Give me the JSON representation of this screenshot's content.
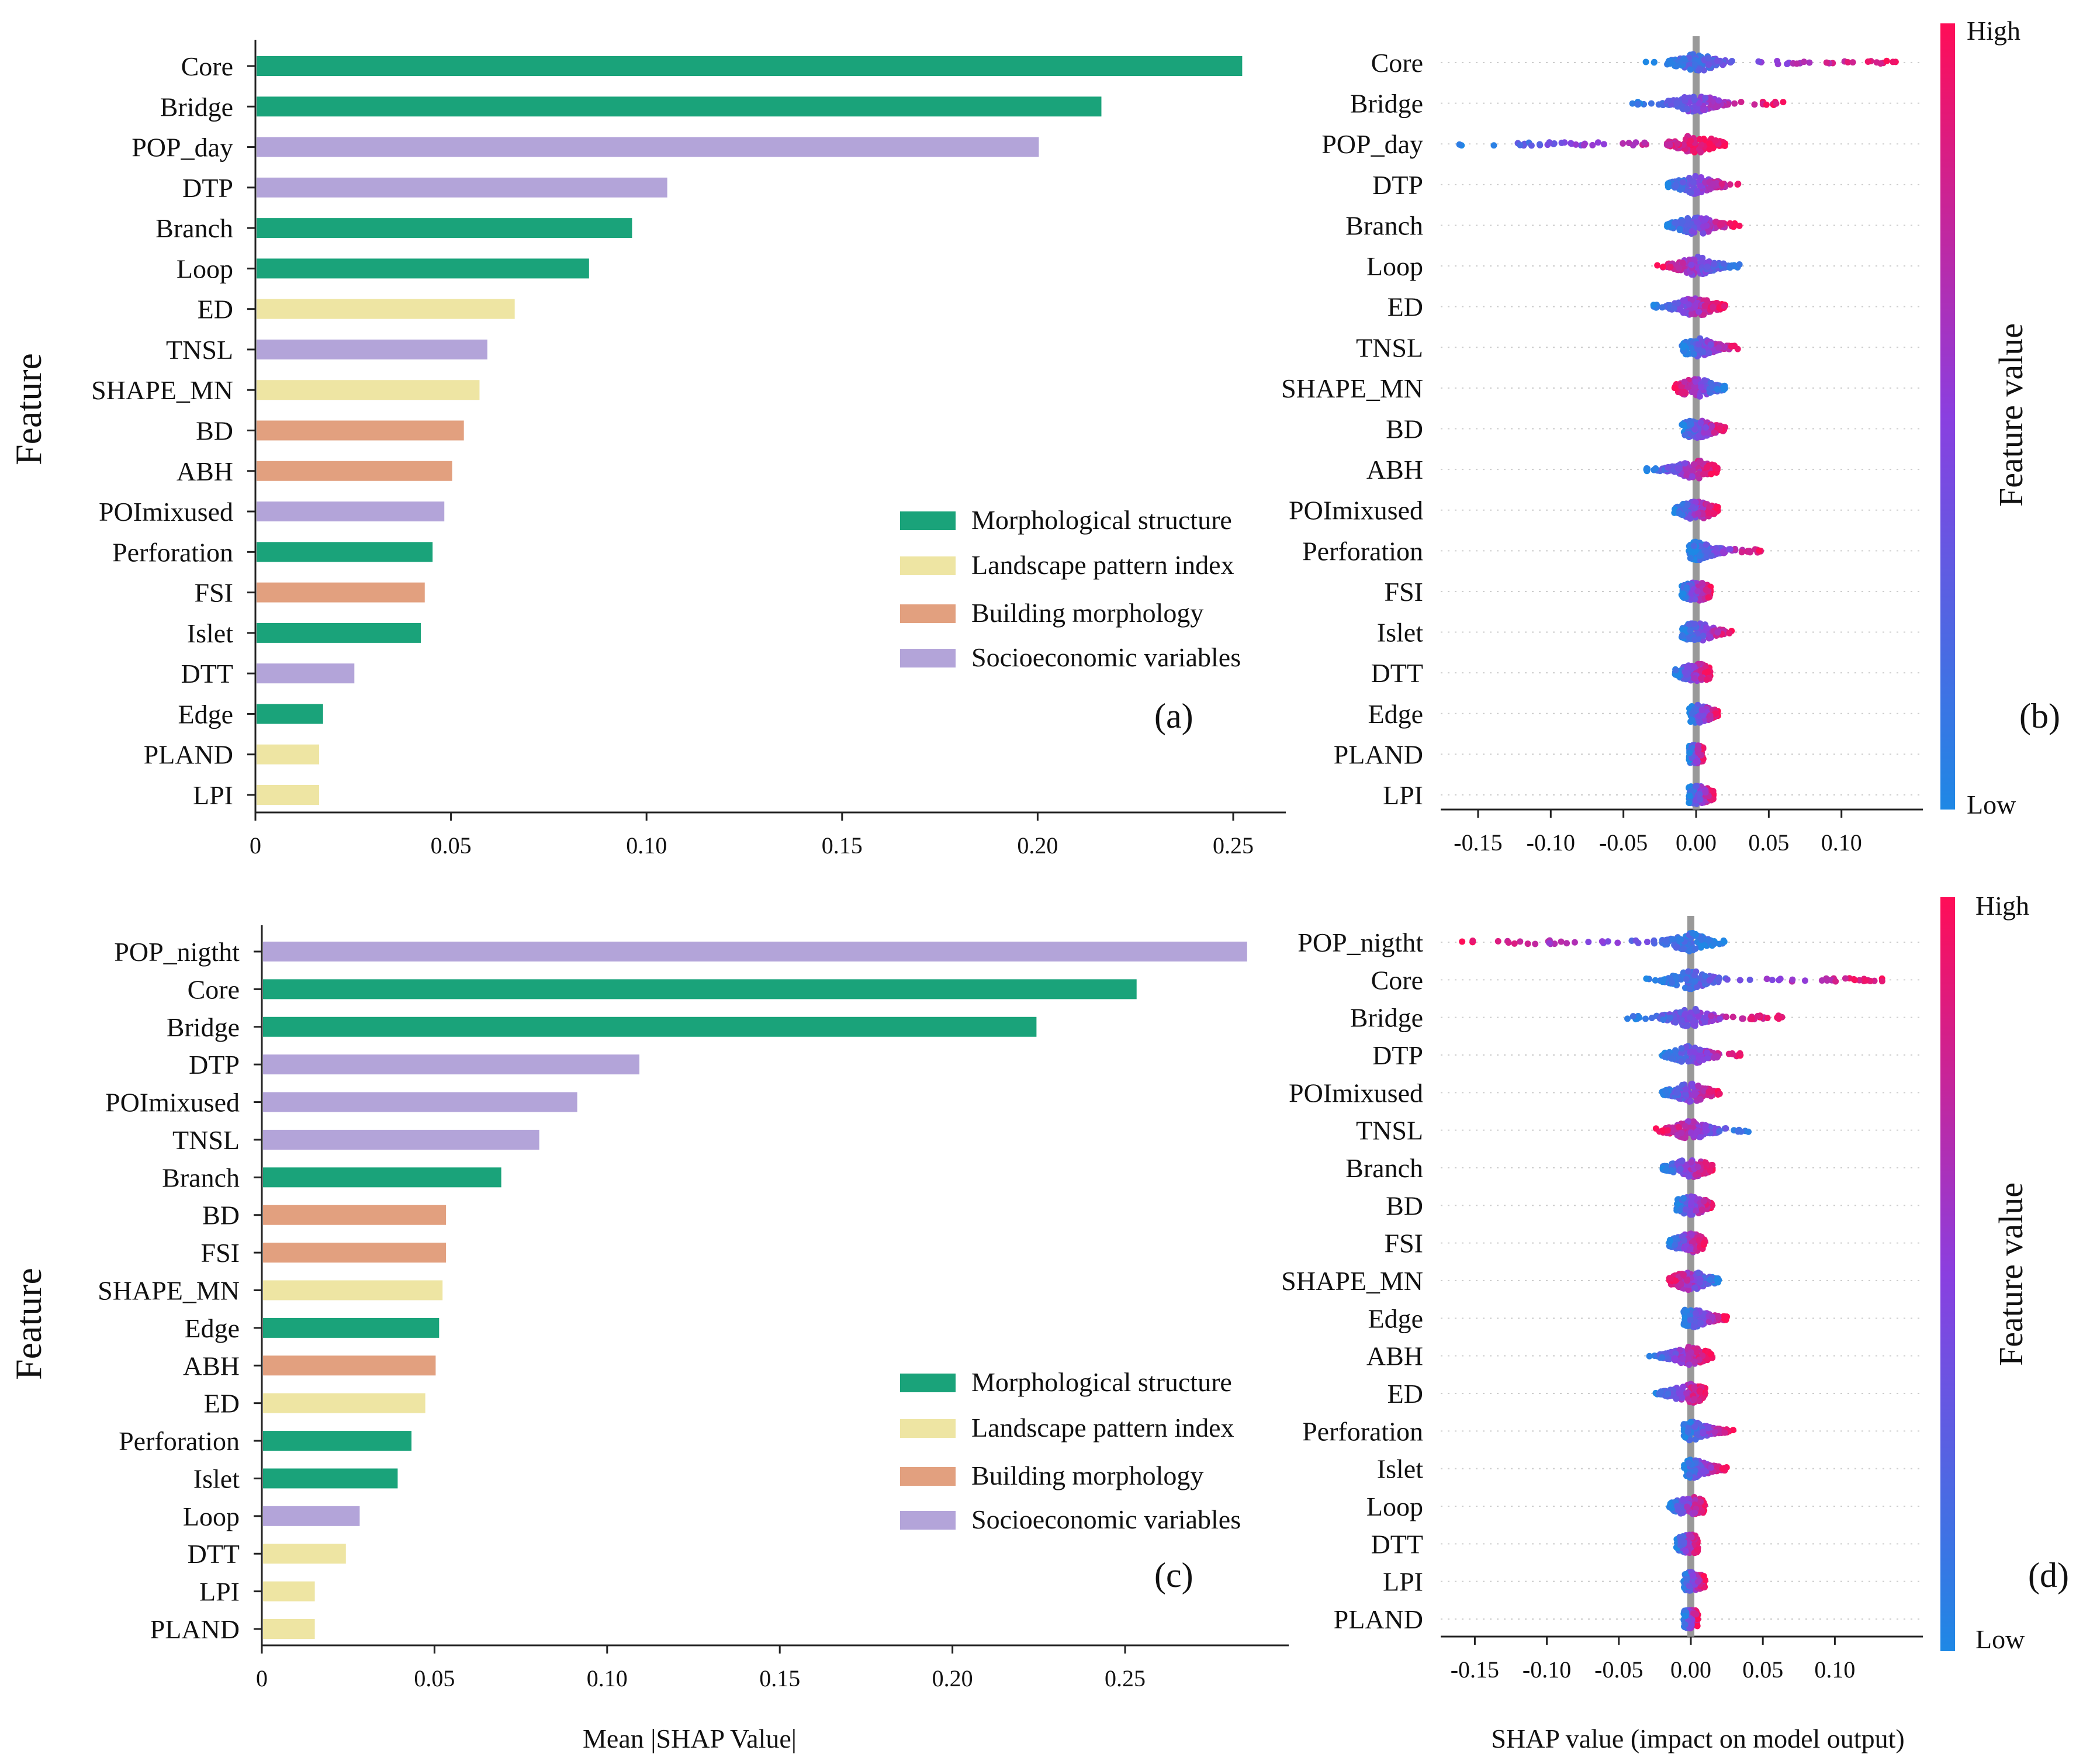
{
  "colors": {
    "morphological": "#1aa37a",
    "landscape": "#eee5a3",
    "building": "#e2a07f",
    "socioeconomic": "#b3a4d9",
    "shap_low": "#1e88e5",
    "shap_mid": "#8a3fe0",
    "shap_high": "#ff0d57",
    "zero_line": "#999999"
  },
  "legend": {
    "morphological": "Morphological structure",
    "landscape": "Landscape pattern index",
    "building": "Building morphology",
    "socioeconomic": "Socioeconomic variables"
  },
  "colorbar": {
    "title": "Feature value",
    "high": "High",
    "low": "Low"
  },
  "chart_data": [
    {
      "panel": "a",
      "type": "bar",
      "orientation": "horizontal",
      "panel_label": "(a)",
      "ylabel": "Feature",
      "xlabel": "",
      "xlim": [
        0,
        0.265
      ],
      "xticks": [
        "0",
        "0.05",
        "0.10",
        "0.15",
        "0.20",
        "0.25"
      ],
      "categories": [
        "Core",
        "Bridge",
        "POP_day",
        "DTP",
        "Branch",
        "Loop",
        "ED",
        "TNSL",
        "SHAPE_MN",
        "BD",
        "ABH",
        "POImixused",
        "Perforation",
        "FSI",
        "Islet",
        "DTT",
        "Edge",
        "PLAND",
        "LPI"
      ],
      "values": [
        0.252,
        0.216,
        0.2,
        0.105,
        0.096,
        0.085,
        0.066,
        0.059,
        0.057,
        0.053,
        0.05,
        0.048,
        0.045,
        0.043,
        0.042,
        0.025,
        0.017,
        0.016,
        0.016
      ],
      "groups": [
        "morphological",
        "morphological",
        "socioeconomic",
        "socioeconomic",
        "morphological",
        "morphological",
        "landscape",
        "socioeconomic",
        "landscape",
        "building",
        "building",
        "socioeconomic",
        "morphological",
        "building",
        "morphological",
        "socioeconomic",
        "morphological",
        "landscape",
        "landscape"
      ]
    },
    {
      "panel": "b",
      "type": "scatter",
      "subtype": "shap_beeswarm",
      "panel_label": "(b)",
      "xlabel": "",
      "xlim": [
        -0.18,
        0.16
      ],
      "xticks": [
        "-0.15",
        "-0.10",
        "-0.05",
        "0.00",
        "0.05",
        "0.10"
      ],
      "categories": [
        "Core",
        "Bridge",
        "POP_day",
        "DTP",
        "Branch",
        "Loop",
        "ED",
        "TNSL",
        "SHAPE_MN",
        "BD",
        "ABH",
        "POImixused",
        "Perforation",
        "FSI",
        "Islet",
        "DTT",
        "Edge",
        "PLAND",
        "LPI"
      ],
      "ranges": [
        [
          -0.035,
          0.14
        ],
        [
          -0.045,
          0.06
        ],
        [
          -0.165,
          0.02
        ],
        [
          -0.02,
          0.03
        ],
        [
          -0.02,
          0.03
        ],
        [
          -0.03,
          0.03
        ],
        [
          -0.03,
          0.02
        ],
        [
          -0.01,
          0.03
        ],
        [
          -0.015,
          0.02
        ],
        [
          -0.01,
          0.02
        ],
        [
          -0.035,
          0.015
        ],
        [
          -0.015,
          0.015
        ],
        [
          -0.005,
          0.045
        ],
        [
          -0.01,
          0.01
        ],
        [
          -0.01,
          0.025
        ],
        [
          -0.015,
          0.01
        ],
        [
          -0.005,
          0.015
        ],
        [
          -0.005,
          0.005
        ],
        [
          -0.005,
          0.012
        ]
      ],
      "high_side": [
        "right",
        "right",
        "right",
        "right",
        "right",
        "left",
        "right",
        "right",
        "left",
        "right",
        "right",
        "right",
        "right",
        "right",
        "right",
        "right",
        "right",
        "right",
        "right"
      ]
    },
    {
      "panel": "c",
      "type": "bar",
      "orientation": "horizontal",
      "panel_label": "(c)",
      "ylabel": "Feature",
      "xlabel": "Mean |SHAP Value|",
      "xlim": [
        0,
        0.3
      ],
      "xticks": [
        "0",
        "0.05",
        "0.10",
        "0.15",
        "0.20",
        "0.25"
      ],
      "categories": [
        "POP_nigtht",
        "Core",
        "Bridge",
        "DTP",
        "POImixused",
        "TNSL",
        "Branch",
        "BD",
        "FSI",
        "SHAPE_MN",
        "Edge",
        "ABH",
        "ED",
        "Perforation",
        "Islet",
        "Loop",
        "DTT",
        "LPI",
        "PLAND"
      ],
      "values": [
        0.285,
        0.253,
        0.224,
        0.109,
        0.091,
        0.08,
        0.069,
        0.053,
        0.053,
        0.052,
        0.051,
        0.05,
        0.047,
        0.043,
        0.039,
        0.028,
        0.024,
        0.015,
        0.015
      ],
      "groups": [
        "socioeconomic",
        "morphological",
        "morphological",
        "socioeconomic",
        "socioeconomic",
        "socioeconomic",
        "morphological",
        "building",
        "building",
        "landscape",
        "morphological",
        "building",
        "landscape",
        "morphological",
        "morphological",
        "socioeconomic",
        "landscape",
        "landscape",
        "landscape"
      ]
    },
    {
      "panel": "d",
      "type": "scatter",
      "subtype": "shap_beeswarm",
      "panel_label": "(d)",
      "xlabel": "SHAP value (impact on model output)",
      "xlim": [
        -0.18,
        0.16
      ],
      "xticks": [
        "-0.15",
        "-0.10",
        "-0.05",
        "0.00",
        "0.05",
        "0.10"
      ],
      "categories": [
        "POP_nigtht",
        "Core",
        "Bridge",
        "DTP",
        "POImixused",
        "TNSL",
        "Branch",
        "BD",
        "FSI",
        "SHAPE_MN",
        "Edge",
        "ABH",
        "ED",
        "Perforation",
        "Islet",
        "Loop",
        "DTT",
        "LPI",
        "PLAND"
      ],
      "ranges": [
        [
          -0.16,
          0.025
        ],
        [
          -0.035,
          0.14
        ],
        [
          -0.045,
          0.065
        ],
        [
          -0.02,
          0.035
        ],
        [
          -0.02,
          0.02
        ],
        [
          -0.025,
          0.04
        ],
        [
          -0.02,
          0.015
        ],
        [
          -0.01,
          0.015
        ],
        [
          -0.015,
          0.01
        ],
        [
          -0.015,
          0.02
        ],
        [
          -0.005,
          0.025
        ],
        [
          -0.03,
          0.015
        ],
        [
          -0.025,
          0.01
        ],
        [
          -0.005,
          0.03
        ],
        [
          -0.005,
          0.025
        ],
        [
          -0.015,
          0.01
        ],
        [
          -0.01,
          0.005
        ],
        [
          -0.005,
          0.01
        ],
        [
          -0.005,
          0.005
        ]
      ],
      "high_side": [
        "left",
        "right",
        "right",
        "right",
        "right",
        "left",
        "right",
        "right",
        "right",
        "left",
        "right",
        "right",
        "right",
        "right",
        "right",
        "right",
        "right",
        "right",
        "right"
      ]
    }
  ]
}
